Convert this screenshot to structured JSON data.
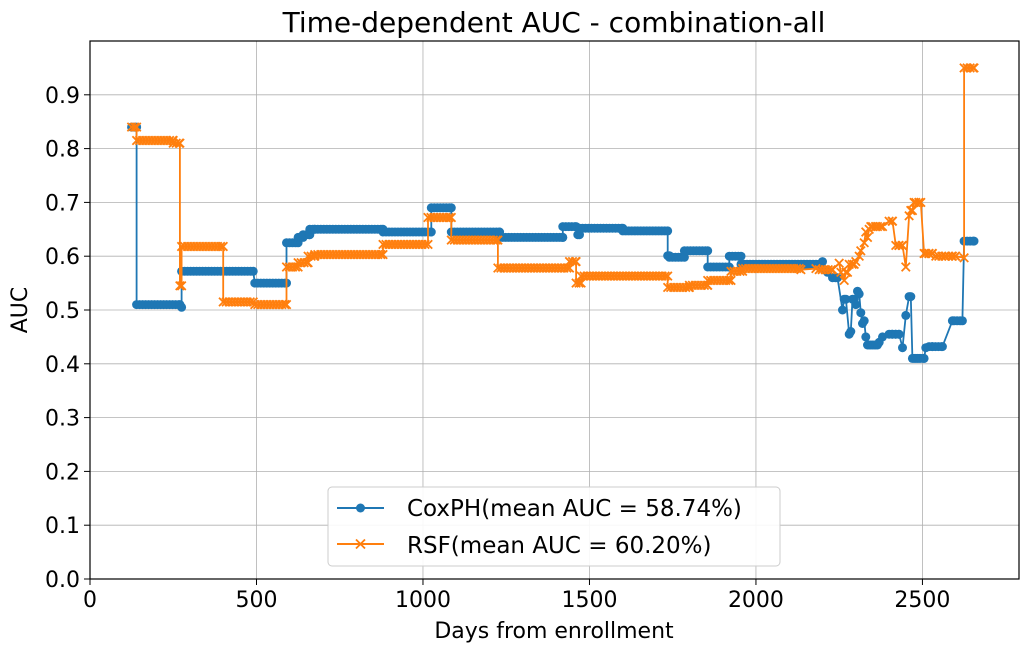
{
  "chart_data": {
    "type": "line",
    "title": "Time-dependent AUC - combination-all",
    "xlabel": "Days from enrollment",
    "ylabel": "AUC",
    "xlim": [
      0,
      2790
    ],
    "ylim": [
      0.0,
      1.0
    ],
    "xticks": [
      0,
      500,
      1000,
      1500,
      2000,
      2500
    ],
    "xtick_labels": [
      "0",
      "500",
      "1000",
      "1500",
      "2000",
      "2500"
    ],
    "yticks": [
      0.0,
      0.1,
      0.2,
      0.3,
      0.4,
      0.5,
      0.6,
      0.7,
      0.8,
      0.9
    ],
    "ytick_labels": [
      "0.0",
      "0.1",
      "0.2",
      "0.3",
      "0.4",
      "0.5",
      "0.6",
      "0.7",
      "0.8",
      "0.9"
    ],
    "grid": true,
    "legend_position": "bottom-center",
    "series": [
      {
        "name": "CoxPH(mean AUC = 58.74%)",
        "color": "#1f77b4",
        "marker": "circle",
        "x": [
          125,
          140,
          140,
          270,
          275,
          275,
          490,
          495,
          590,
          590,
          625,
          625,
          640,
          640,
          660,
          660,
          675,
          675,
          880,
          880,
          1025,
          1025,
          1085,
          1085,
          1230,
          1230,
          1420,
          1420,
          1460,
          1465,
          1470,
          1470,
          1600,
          1600,
          1735,
          1735,
          1740,
          1740,
          1785,
          1785,
          1855,
          1855,
          1920,
          1920,
          1955,
          1955,
          2195,
          2200,
          2205,
          2215,
          2230,
          2245,
          2260,
          2265,
          2270,
          2280,
          2285,
          2290,
          2295,
          2300,
          2305,
          2310,
          2315,
          2320,
          2325,
          2330,
          2335,
          2340,
          2345,
          2350,
          2355,
          2360,
          2365,
          2370,
          2380,
          2400,
          2410,
          2420,
          2430,
          2440,
          2450,
          2460,
          2465,
          2470,
          2475,
          2480,
          2485,
          2490,
          2495,
          2505,
          2510,
          2520,
          2530,
          2560,
          2590,
          2595,
          2620,
          2625,
          2655
        ],
        "y": [
          0.84,
          0.84,
          0.51,
          0.51,
          0.505,
          0.572,
          0.572,
          0.55,
          0.55,
          0.625,
          0.625,
          0.635,
          0.635,
          0.64,
          0.64,
          0.65,
          0.65,
          0.65,
          0.65,
          0.645,
          0.645,
          0.69,
          0.69,
          0.645,
          0.645,
          0.635,
          0.635,
          0.655,
          0.655,
          0.64,
          0.64,
          0.652,
          0.652,
          0.647,
          0.647,
          0.601,
          0.601,
          0.598,
          0.598,
          0.61,
          0.61,
          0.58,
          0.58,
          0.6,
          0.6,
          0.585,
          0.585,
          0.59,
          0.575,
          0.57,
          0.56,
          0.56,
          0.5,
          0.52,
          0.52,
          0.455,
          0.46,
          0.52,
          0.52,
          0.51,
          0.535,
          0.53,
          0.495,
          0.475,
          0.48,
          0.45,
          0.435,
          0.435,
          0.435,
          0.435,
          0.435,
          0.435,
          0.435,
          0.44,
          0.45,
          0.455,
          0.455,
          0.455,
          0.455,
          0.43,
          0.49,
          0.525,
          0.525,
          0.41,
          0.41,
          0.41,
          0.41,
          0.41,
          0.41,
          0.41,
          0.43,
          0.432,
          0.432,
          0.432,
          0.48,
          0.48,
          0.48,
          0.628,
          0.628
        ]
      },
      {
        "name": "RSF(mean AUC = 60.20%)",
        "color": "#ff7f0e",
        "marker": "x",
        "x": [
          125,
          140,
          140,
          250,
          250,
          270,
          270,
          275,
          275,
          400,
          400,
          490,
          495,
          590,
          590,
          625,
          625,
          655,
          655,
          675,
          675,
          880,
          880,
          1015,
          1015,
          1085,
          1085,
          1225,
          1225,
          1440,
          1440,
          1460,
          1460,
          1475,
          1475,
          1735,
          1735,
          1800,
          1800,
          1855,
          1855,
          1925,
          1925,
          1960,
          1960,
          2130,
          2135,
          2180,
          2190,
          2230,
          2250,
          2255,
          2265,
          2270,
          2275,
          2280,
          2295,
          2300,
          2310,
          2315,
          2325,
          2330,
          2335,
          2340,
          2345,
          2350,
          2360,
          2365,
          2380,
          2400,
          2410,
          2420,
          2430,
          2440,
          2450,
          2460,
          2465,
          2470,
          2475,
          2480,
          2490,
          2495,
          2505,
          2510,
          2520,
          2530,
          2540,
          2570,
          2590,
          2600,
          2625,
          2625,
          2655
        ],
        "y": [
          0.84,
          0.84,
          0.815,
          0.815,
          0.81,
          0.81,
          0.545,
          0.545,
          0.618,
          0.618,
          0.515,
          0.515,
          0.51,
          0.51,
          0.58,
          0.58,
          0.588,
          0.588,
          0.6,
          0.6,
          0.603,
          0.603,
          0.622,
          0.622,
          0.672,
          0.672,
          0.63,
          0.63,
          0.578,
          0.578,
          0.59,
          0.59,
          0.55,
          0.55,
          0.563,
          0.563,
          0.542,
          0.542,
          0.546,
          0.546,
          0.555,
          0.555,
          0.572,
          0.572,
          0.577,
          0.577,
          0.575,
          0.577,
          0.575,
          0.575,
          0.587,
          0.57,
          0.555,
          0.57,
          0.57,
          0.585,
          0.585,
          0.59,
          0.6,
          0.61,
          0.625,
          0.645,
          0.635,
          0.65,
          0.655,
          0.655,
          0.655,
          0.655,
          0.655,
          0.665,
          0.665,
          0.62,
          0.62,
          0.62,
          0.58,
          0.675,
          0.685,
          0.685,
          0.7,
          0.7,
          0.7,
          0.7,
          0.605,
          0.605,
          0.605,
          0.605,
          0.6,
          0.6,
          0.6,
          0.6,
          0.597,
          0.95,
          0.95
        ]
      }
    ]
  }
}
